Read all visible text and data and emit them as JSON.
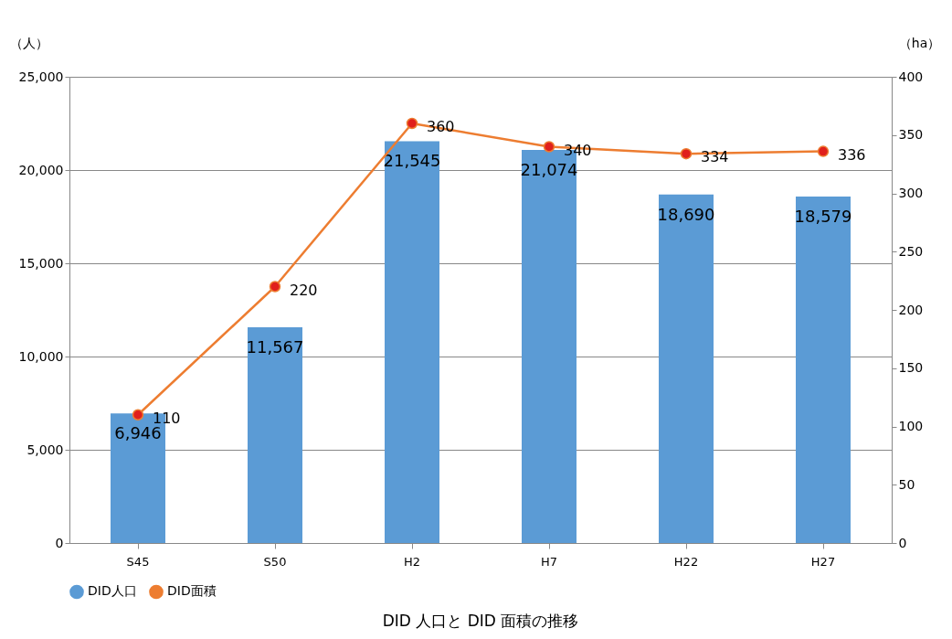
{
  "chart_data": {
    "type": "bar",
    "title": "DID 人口と DID 面積の推移",
    "categories": [
      "S45",
      "S50",
      "H2",
      "H7",
      "H22",
      "H27"
    ],
    "ylabel": "（人）",
    "y2label": "（ha）",
    "series": [
      {
        "name": "DID人口",
        "color": "#5b9bd5",
        "values": [
          6946,
          11567,
          21545,
          21074,
          18690,
          18579
        ],
        "value_labels": [
          "6,946",
          "11,567",
          "21,545",
          "21,074",
          "18,690",
          "18,579"
        ]
      },
      {
        "name": "DID面積",
        "type": "line",
        "axis": "y2",
        "color": "#ed7d31",
        "marker": "circle",
        "line_style": "solid",
        "values": [
          110,
          220,
          360,
          340,
          334,
          336
        ],
        "value_labels": [
          "110",
          "220",
          "360",
          "340",
          "334",
          "336"
        ]
      }
    ],
    "ylim": [
      0,
      25000
    ],
    "yticks": [
      0,
      {
        "value": 5000,
        "label": "5,000"
      },
      {
        "value": 10000,
        "label": "10,000"
      },
      {
        "value": 15000,
        "label": "15,000"
      },
      {
        "value": 20000,
        "label": "20,000"
      },
      {
        "value": 25000,
        "label": "25,000"
      }
    ],
    "y2lim": [
      0,
      400
    ],
    "y2ticks": [
      0,
      50,
      100,
      150,
      200,
      250,
      300,
      350,
      400
    ],
    "grid": "y",
    "legend": "bottom"
  }
}
